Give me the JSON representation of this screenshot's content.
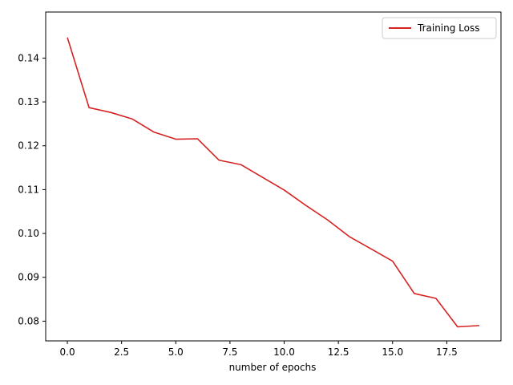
{
  "chart_data": {
    "type": "line",
    "title": "",
    "xlabel": "number of epochs",
    "ylabel": "",
    "xlim": [
      -1.0,
      20.0
    ],
    "ylim": [
      0.0755,
      0.1505
    ],
    "xticks": [
      0.0,
      2.5,
      5.0,
      7.5,
      10.0,
      12.5,
      15.0,
      17.5
    ],
    "xtick_labels": [
      "0.0",
      "2.5",
      "5.0",
      "7.5",
      "10.0",
      "12.5",
      "15.0",
      "17.5"
    ],
    "yticks": [
      0.08,
      0.09,
      0.1,
      0.11,
      0.12,
      0.13,
      0.14
    ],
    "ytick_labels": [
      "0.08",
      "0.09",
      "0.10",
      "0.11",
      "0.12",
      "0.13",
      "0.14"
    ],
    "grid": false,
    "legend_position": "top-right",
    "series": [
      {
        "name": "Training Loss",
        "color": "#d62222",
        "x": [
          0,
          1,
          2,
          3,
          4,
          5,
          6,
          7,
          8,
          9,
          10,
          11,
          12,
          13,
          14,
          15,
          16,
          17,
          18,
          19
        ],
        "y": [
          0.1447,
          0.1287,
          0.1276,
          0.1261,
          0.1231,
          0.1215,
          0.1216,
          0.1167,
          0.1157,
          0.1128,
          0.1099,
          0.1064,
          0.1031,
          0.0993,
          0.0965,
          0.0937,
          0.0863,
          0.0852,
          0.0787,
          0.079
        ]
      }
    ]
  }
}
